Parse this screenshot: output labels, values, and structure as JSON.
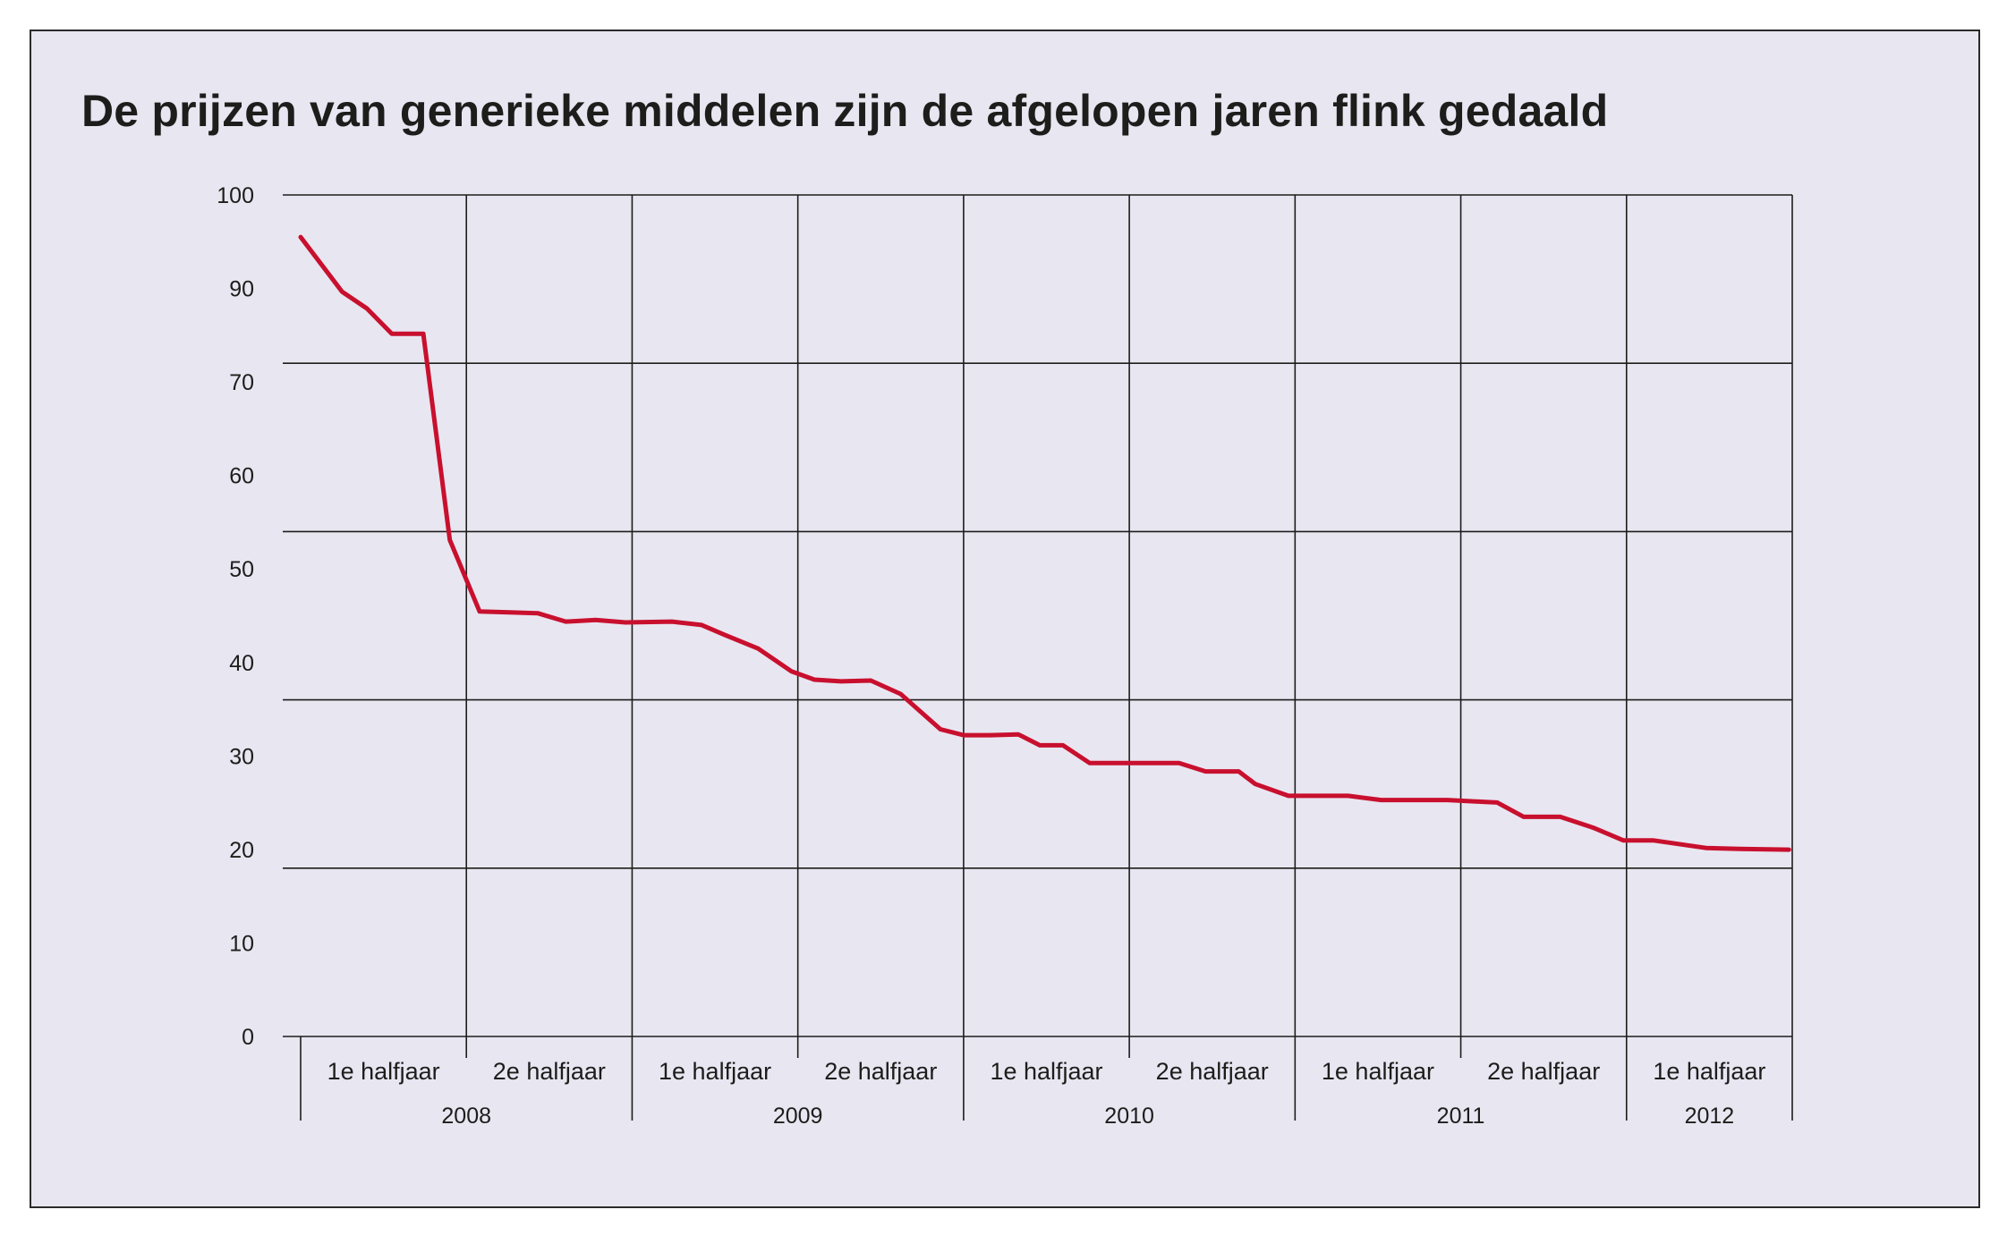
{
  "chart_data": {
    "type": "line",
    "title": "De prijzen van generieke middelen zijn de afgelopen jaren flink gedaald",
    "xlabel": "",
    "ylabel": "",
    "ylim": [
      0,
      100
    ],
    "y_ticks": [
      "0",
      "10",
      "20",
      "30",
      "40",
      "50",
      "60",
      "70",
      "90",
      "100"
    ],
    "grid": true,
    "half_year_labels": [
      "1e halfjaar",
      "2e halfjaar",
      "1e halfjaar",
      "2e halfjaar",
      "1e halfjaar",
      "2e halfjaar",
      "1e halfjaar",
      "2e halfjaar",
      "1e halfjaar"
    ],
    "years": [
      "2008",
      "2009",
      "2010",
      "2011",
      "2012"
    ],
    "x_range_halfyears": [
      0,
      9
    ],
    "line_color": "#c8102e",
    "series": [
      {
        "x": [
          0.0,
          0.25,
          0.4,
          0.55,
          0.74,
          0.9,
          1.08,
          1.26,
          1.43,
          1.6,
          1.78,
          1.96,
          2.24,
          2.42,
          2.56,
          2.76,
          2.96,
          3.1,
          3.26,
          3.44,
          3.62,
          3.86,
          4.0,
          4.16,
          4.33,
          4.46,
          4.6,
          4.76,
          4.96,
          5.16,
          5.3,
          5.46,
          5.66,
          5.76,
          5.96,
          6.12,
          6.32,
          6.52,
          6.72,
          6.92,
          7.12,
          7.22,
          7.38,
          7.6,
          7.8,
          7.98,
          8.16,
          8.48,
          8.68,
          8.98
        ],
        "values": [
          95,
          88.5,
          86.5,
          83.5,
          83.5,
          59,
          50.5,
          50.4,
          50.3,
          49.3,
          49.5,
          49.2,
          49.3,
          48.9,
          47.7,
          46.1,
          43.4,
          42.4,
          42.2,
          42.3,
          40.7,
          36.5,
          35.8,
          35.8,
          35.9,
          34.6,
          34.6,
          32.5,
          32.5,
          32.5,
          32.5,
          31.5,
          31.5,
          30,
          28.6,
          28.6,
          28.6,
          28.1,
          28.1,
          28.1,
          27.9,
          27.8,
          26.1,
          26.1,
          24.8,
          23.3,
          23.3,
          22.4,
          22.3,
          22.2
        ]
      }
    ]
  }
}
